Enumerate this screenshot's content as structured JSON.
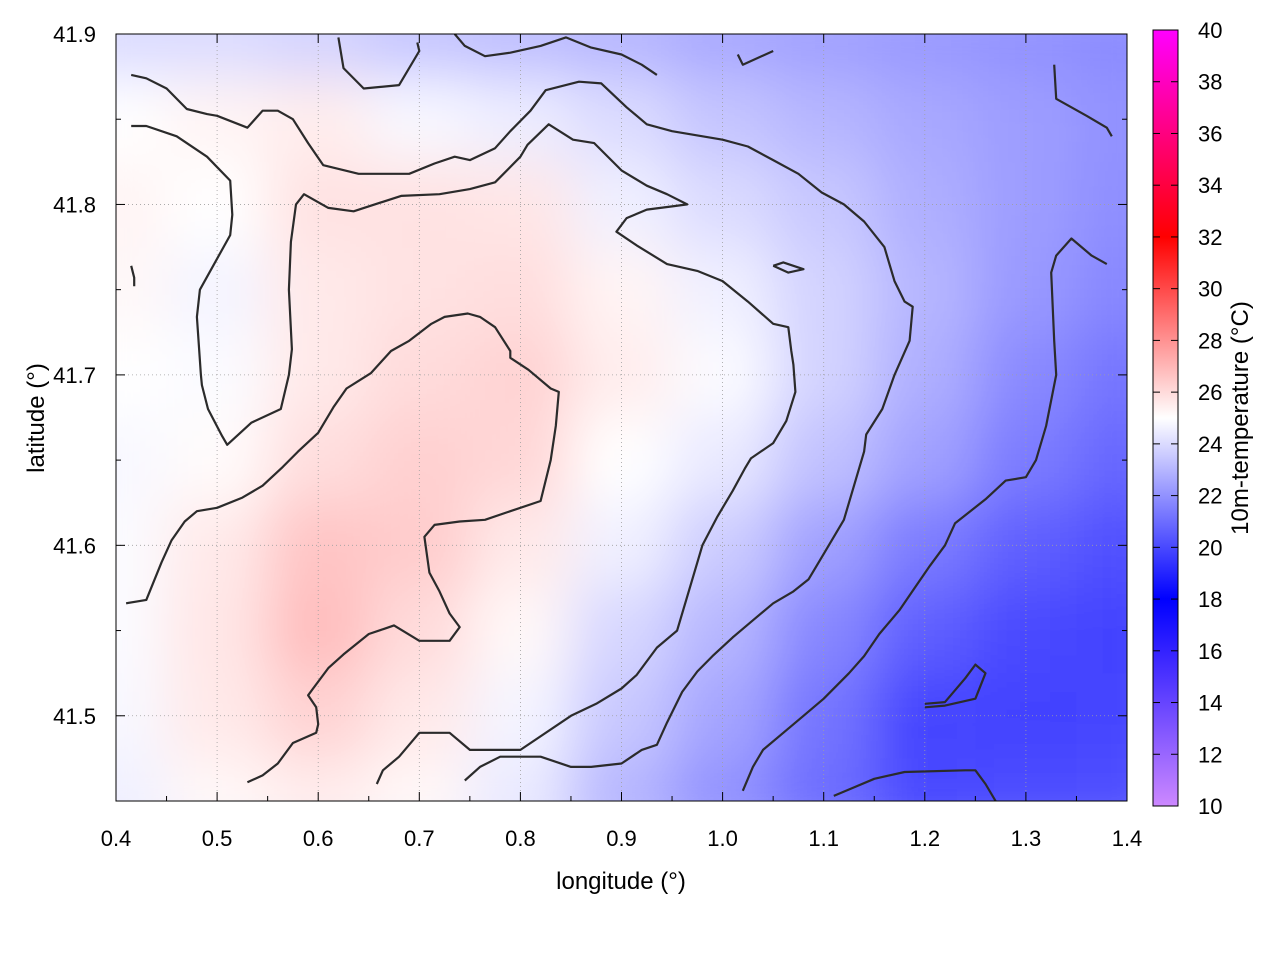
{
  "chart_data": {
    "type": "heatmap",
    "xlabel": "longitude (°)",
    "ylabel": "latitude (°)",
    "colorbar_label": "10m-temperature (°C)",
    "xlim": [
      0.4,
      1.4
    ],
    "ylim": [
      41.45,
      41.9
    ],
    "x_ticks": [
      0.4,
      0.5,
      0.6,
      0.7,
      0.8,
      0.9,
      1.0,
      1.1,
      1.2,
      1.3,
      1.4
    ],
    "x_tick_labels": [
      "0.4",
      "0.5",
      "0.6",
      "0.7",
      "0.8",
      "0.9",
      "1.0",
      "1.1",
      "1.2",
      "1.3",
      "1.4"
    ],
    "y_ticks": [
      41.5,
      41.6,
      41.7,
      41.8,
      41.9
    ],
    "y_tick_labels": [
      "41.5",
      "41.6",
      "41.7",
      "41.8",
      "41.9"
    ],
    "colorbar_range": [
      10,
      40
    ],
    "colorbar_ticks": [
      10,
      12,
      14,
      16,
      18,
      20,
      22,
      24,
      26,
      28,
      30,
      32,
      34,
      36,
      38,
      40
    ],
    "colorbar_tick_labels": [
      "10",
      "12",
      "14",
      "16",
      "18",
      "20",
      "22",
      "24",
      "26",
      "28",
      "30",
      "32",
      "34",
      "36",
      "38",
      "40"
    ],
    "colormap": [
      {
        "value": 10,
        "color": "#cc88ff"
      },
      {
        "value": 18,
        "color": "#0000ff"
      },
      {
        "value": 25,
        "color": "#ffffff"
      },
      {
        "value": 32,
        "color": "#ff0000"
      },
      {
        "value": 40,
        "color": "#ff00ff"
      }
    ],
    "grid": true,
    "field": {
      "x": [
        0.4,
        0.5,
        0.6,
        0.7,
        0.8,
        0.9,
        1.0,
        1.1,
        1.2,
        1.3,
        1.4
      ],
      "y": [
        41.9,
        41.85,
        41.8,
        41.75,
        41.7,
        41.65,
        41.6,
        41.55,
        41.5,
        41.45
      ],
      "values": [
        [
          24.0,
          24.0,
          23.8,
          23.4,
          23.2,
          23.0,
          22.6,
          22.4,
          22.2,
          22.0,
          21.8
        ],
        [
          25.0,
          25.3,
          25.5,
          24.8,
          24.5,
          24.0,
          23.4,
          23.0,
          22.6,
          22.3,
          22.0
        ],
        [
          25.3,
          25.0,
          25.8,
          25.8,
          25.7,
          24.6,
          24.0,
          23.5,
          22.8,
          22.3,
          21.9
        ],
        [
          25.2,
          24.7,
          25.6,
          25.8,
          25.9,
          25.3,
          24.6,
          23.8,
          23.0,
          22.2,
          21.7
        ],
        [
          25.0,
          24.9,
          25.6,
          26.0,
          26.2,
          25.5,
          24.9,
          23.8,
          22.8,
          21.8,
          21.2
        ],
        [
          24.8,
          25.1,
          25.9,
          26.3,
          26.1,
          25.0,
          24.4,
          23.3,
          22.4,
          21.4,
          20.8
        ],
        [
          24.9,
          25.6,
          26.6,
          26.4,
          25.6,
          24.6,
          23.6,
          22.4,
          21.4,
          20.6,
          20.2
        ],
        [
          24.9,
          25.7,
          26.8,
          26.0,
          25.2,
          23.9,
          23.0,
          21.7,
          20.6,
          20.0,
          19.8
        ],
        [
          24.8,
          25.6,
          26.2,
          25.6,
          24.7,
          23.5,
          22.5,
          21.2,
          19.9,
          19.8,
          19.9
        ],
        [
          24.6,
          25.2,
          25.5,
          25.2,
          24.4,
          23.0,
          22.0,
          21.0,
          20.0,
          20.1,
          20.2
        ]
      ]
    },
    "contours": [
      [
        [
          0.415,
          41.846
        ],
        [
          0.43,
          41.846
        ],
        [
          0.46,
          41.84
        ],
        [
          0.49,
          41.828
        ],
        [
          0.513,
          41.814
        ],
        [
          0.515,
          41.794
        ],
        [
          0.513,
          41.782
        ],
        [
          0.483,
          41.75
        ],
        [
          0.48,
          41.734
        ],
        [
          0.484,
          41.7
        ],
        [
          0.485,
          41.694
        ],
        [
          0.491,
          41.68
        ],
        [
          0.505,
          41.664
        ],
        [
          0.51,
          41.659
        ],
        [
          0.534,
          41.672
        ],
        [
          0.563,
          41.68
        ],
        [
          0.571,
          41.7
        ],
        [
          0.574,
          41.715
        ],
        [
          0.571,
          41.75
        ],
        [
          0.573,
          41.778
        ],
        [
          0.578,
          41.8
        ],
        [
          0.586,
          41.806
        ],
        [
          0.61,
          41.798
        ],
        [
          0.635,
          41.796
        ],
        [
          0.682,
          41.805
        ],
        [
          0.72,
          41.806
        ],
        [
          0.75,
          41.809
        ],
        [
          0.775,
          41.813
        ],
        [
          0.78,
          41.816
        ],
        [
          0.8,
          41.828
        ],
        [
          0.807,
          41.835
        ],
        [
          0.828,
          41.847
        ],
        [
          0.852,
          41.838
        ],
        [
          0.873,
          41.836
        ],
        [
          0.9,
          41.82
        ],
        [
          0.925,
          41.811
        ],
        [
          0.945,
          41.806
        ],
        [
          0.965,
          41.8
        ],
        [
          0.952,
          41.799
        ],
        [
          0.925,
          41.797
        ],
        [
          0.905,
          41.792
        ],
        [
          0.895,
          41.784
        ],
        [
          0.915,
          41.776
        ],
        [
          0.945,
          41.765
        ],
        [
          0.975,
          41.761
        ],
        [
          1.0,
          41.755
        ],
        [
          1.025,
          41.743
        ],
        [
          1.05,
          41.73
        ],
        [
          1.065,
          41.728
        ],
        [
          1.068,
          41.714
        ],
        [
          1.07,
          41.706
        ],
        [
          1.072,
          41.69
        ],
        [
          1.063,
          41.673
        ],
        [
          1.05,
          41.66
        ],
        [
          1.028,
          41.651
        ],
        [
          1.022,
          41.645
        ],
        [
          1.01,
          41.632
        ],
        [
          0.995,
          41.617
        ],
        [
          0.98,
          41.6
        ],
        [
          0.97,
          41.58
        ],
        [
          0.955,
          41.55
        ],
        [
          0.935,
          41.54
        ],
        [
          0.915,
          41.524
        ],
        [
          0.9,
          41.516
        ],
        [
          0.875,
          41.507
        ],
        [
          0.85,
          41.5
        ],
        [
          0.8,
          41.48
        ],
        [
          0.75,
          41.48
        ],
        [
          0.73,
          41.49
        ],
        [
          0.725,
          41.49
        ],
        [
          0.7,
          41.49
        ],
        [
          0.68,
          41.476
        ],
        [
          0.664,
          41.468
        ],
        [
          0.658,
          41.46
        ]
      ],
      [
        [
          0.41,
          41.566
        ],
        [
          0.43,
          41.568
        ],
        [
          0.445,
          41.59
        ],
        [
          0.455,
          41.603
        ],
        [
          0.468,
          41.614
        ],
        [
          0.48,
          41.62
        ],
        [
          0.5,
          41.622
        ],
        [
          0.525,
          41.628
        ],
        [
          0.545,
          41.635
        ],
        [
          0.565,
          41.646
        ],
        [
          0.58,
          41.655
        ],
        [
          0.6,
          41.666
        ],
        [
          0.615,
          41.681
        ],
        [
          0.628,
          41.692
        ],
        [
          0.652,
          41.701
        ],
        [
          0.672,
          41.714
        ],
        [
          0.69,
          41.72
        ],
        [
          0.712,
          41.73
        ],
        [
          0.725,
          41.734
        ],
        [
          0.748,
          41.736
        ],
        [
          0.76,
          41.734
        ],
        [
          0.775,
          41.728
        ],
        [
          0.79,
          41.714
        ],
        [
          0.79,
          41.71
        ],
        [
          0.808,
          41.703
        ],
        [
          0.83,
          41.692
        ],
        [
          0.838,
          41.69
        ],
        [
          0.835,
          41.67
        ],
        [
          0.83,
          41.65
        ],
        [
          0.82,
          41.626
        ],
        [
          0.79,
          41.62
        ],
        [
          0.765,
          41.615
        ],
        [
          0.74,
          41.614
        ],
        [
          0.715,
          41.612
        ],
        [
          0.705,
          41.605
        ],
        [
          0.71,
          41.584
        ],
        [
          0.72,
          41.573
        ],
        [
          0.73,
          41.56
        ],
        [
          0.74,
          41.552
        ],
        [
          0.73,
          41.544
        ],
        [
          0.7,
          41.544
        ],
        [
          0.675,
          41.553
        ],
        [
          0.665,
          41.551
        ],
        [
          0.65,
          41.548
        ],
        [
          0.625,
          41.536
        ],
        [
          0.61,
          41.528
        ],
        [
          0.595,
          41.516
        ],
        [
          0.59,
          41.512
        ],
        [
          0.598,
          41.505
        ],
        [
          0.6,
          41.495
        ],
        [
          0.598,
          41.49
        ],
        [
          0.575,
          41.484
        ],
        [
          0.56,
          41.472
        ],
        [
          0.545,
          41.465
        ],
        [
          0.53,
          41.461
        ]
      ],
      [
        [
          0.415,
          41.876
        ],
        [
          0.43,
          41.874
        ],
        [
          0.45,
          41.868
        ],
        [
          0.47,
          41.856
        ],
        [
          0.49,
          41.853
        ],
        [
          0.5,
          41.852
        ],
        [
          0.53,
          41.845
        ],
        [
          0.545,
          41.855
        ],
        [
          0.56,
          41.855
        ],
        [
          0.575,
          41.85
        ],
        [
          0.59,
          41.836
        ],
        [
          0.605,
          41.823
        ],
        [
          0.64,
          41.818
        ],
        [
          0.69,
          41.818
        ],
        [
          0.715,
          41.824
        ],
        [
          0.735,
          41.828
        ],
        [
          0.75,
          41.826
        ],
        [
          0.775,
          41.833
        ],
        [
          0.79,
          41.843
        ],
        [
          0.81,
          41.855
        ],
        [
          0.825,
          41.867
        ],
        [
          0.858,
          41.872
        ],
        [
          0.88,
          41.871
        ],
        [
          0.905,
          41.857
        ],
        [
          0.925,
          41.847
        ],
        [
          0.95,
          41.843
        ],
        [
          1.0,
          41.838
        ],
        [
          1.025,
          41.834
        ],
        [
          1.05,
          41.826
        ],
        [
          1.075,
          41.818
        ],
        [
          1.098,
          41.807
        ],
        [
          1.12,
          41.8
        ],
        [
          1.14,
          41.79
        ],
        [
          1.16,
          41.775
        ],
        [
          1.17,
          41.755
        ],
        [
          1.18,
          41.743
        ],
        [
          1.188,
          41.74
        ],
        [
          1.185,
          41.72
        ],
        [
          1.17,
          41.7
        ],
        [
          1.158,
          41.68
        ],
        [
          1.142,
          41.665
        ],
        [
          1.14,
          41.655
        ],
        [
          1.13,
          41.635
        ],
        [
          1.12,
          41.615
        ],
        [
          1.1,
          41.595
        ],
        [
          1.085,
          41.58
        ],
        [
          1.07,
          41.573
        ],
        [
          1.05,
          41.566
        ],
        [
          1.03,
          41.556
        ],
        [
          1.01,
          41.546
        ],
        [
          0.99,
          41.535
        ],
        [
          0.975,
          41.526
        ],
        [
          0.96,
          41.514
        ],
        [
          0.945,
          41.496
        ],
        [
          0.935,
          41.483
        ],
        [
          0.92,
          41.48
        ],
        [
          0.9,
          41.472
        ],
        [
          0.87,
          41.47
        ],
        [
          0.85,
          41.47
        ],
        [
          0.82,
          41.476
        ],
        [
          0.795,
          41.476
        ],
        [
          0.78,
          41.476
        ],
        [
          0.76,
          41.47
        ],
        [
          0.745,
          41.462
        ]
      ],
      [
        [
          0.735,
          41.9
        ],
        [
          0.745,
          41.893
        ],
        [
          0.765,
          41.887
        ],
        [
          0.79,
          41.889
        ],
        [
          0.82,
          41.893
        ],
        [
          0.845,
          41.898
        ],
        [
          0.87,
          41.892
        ],
        [
          0.9,
          41.888
        ],
        [
          0.92,
          41.882
        ],
        [
          0.935,
          41.876
        ]
      ],
      [
        [
          1.015,
          41.888
        ],
        [
          1.02,
          41.882
        ],
        [
          1.05,
          41.89
        ]
      ],
      [
        [
          1.328,
          41.882
        ],
        [
          1.33,
          41.862
        ],
        [
          1.36,
          41.852
        ],
        [
          1.38,
          41.845
        ],
        [
          1.385,
          41.84
        ]
      ],
      [
        [
          1.02,
          41.456
        ],
        [
          1.03,
          41.47
        ],
        [
          1.04,
          41.48
        ],
        [
          1.06,
          41.49
        ],
        [
          1.08,
          41.5
        ],
        [
          1.1,
          41.51
        ],
        [
          1.125,
          41.525
        ],
        [
          1.14,
          41.535
        ],
        [
          1.155,
          41.548
        ],
        [
          1.175,
          41.562
        ],
        [
          1.19,
          41.575
        ],
        [
          1.205,
          41.588
        ],
        [
          1.22,
          41.6
        ],
        [
          1.23,
          41.613
        ],
        [
          1.26,
          41.627
        ],
        [
          1.28,
          41.638
        ],
        [
          1.3,
          41.64
        ],
        [
          1.31,
          41.65
        ],
        [
          1.32,
          41.67
        ],
        [
          1.33,
          41.7
        ],
        [
          1.328,
          41.72
        ],
        [
          1.325,
          41.76
        ],
        [
          1.33,
          41.77
        ],
        [
          1.345,
          41.78
        ],
        [
          1.365,
          41.77
        ],
        [
          1.38,
          41.765
        ]
      ],
      [
        [
          1.11,
          41.453
        ],
        [
          1.13,
          41.458
        ],
        [
          1.15,
          41.463
        ],
        [
          1.18,
          41.467
        ],
        [
          1.24,
          41.468
        ],
        [
          1.25,
          41.468
        ],
        [
          1.26,
          41.46
        ],
        [
          1.27,
          41.45
        ]
      ],
      [
        [
          1.2,
          41.505
        ],
        [
          1.22,
          41.506
        ],
        [
          1.25,
          41.51
        ],
        [
          1.26,
          41.525
        ],
        [
          1.25,
          41.53
        ],
        [
          1.24,
          41.522
        ],
        [
          1.22,
          41.508
        ],
        [
          1.2,
          41.507
        ]
      ],
      [
        [
          1.05,
          41.764
        ],
        [
          1.06,
          41.766
        ],
        [
          1.08,
          41.762
        ],
        [
          1.065,
          41.76
        ],
        [
          1.05,
          41.764
        ]
      ],
      [
        [
          0.415,
          41.764
        ],
        [
          0.418,
          41.757
        ],
        [
          0.418,
          41.752
        ]
      ],
      [
        [
          0.62,
          41.898
        ],
        [
          0.625,
          41.88
        ],
        [
          0.645,
          41.868
        ],
        [
          0.68,
          41.87
        ],
        [
          0.7,
          41.89
        ],
        [
          0.698,
          41.895
        ]
      ]
    ]
  }
}
